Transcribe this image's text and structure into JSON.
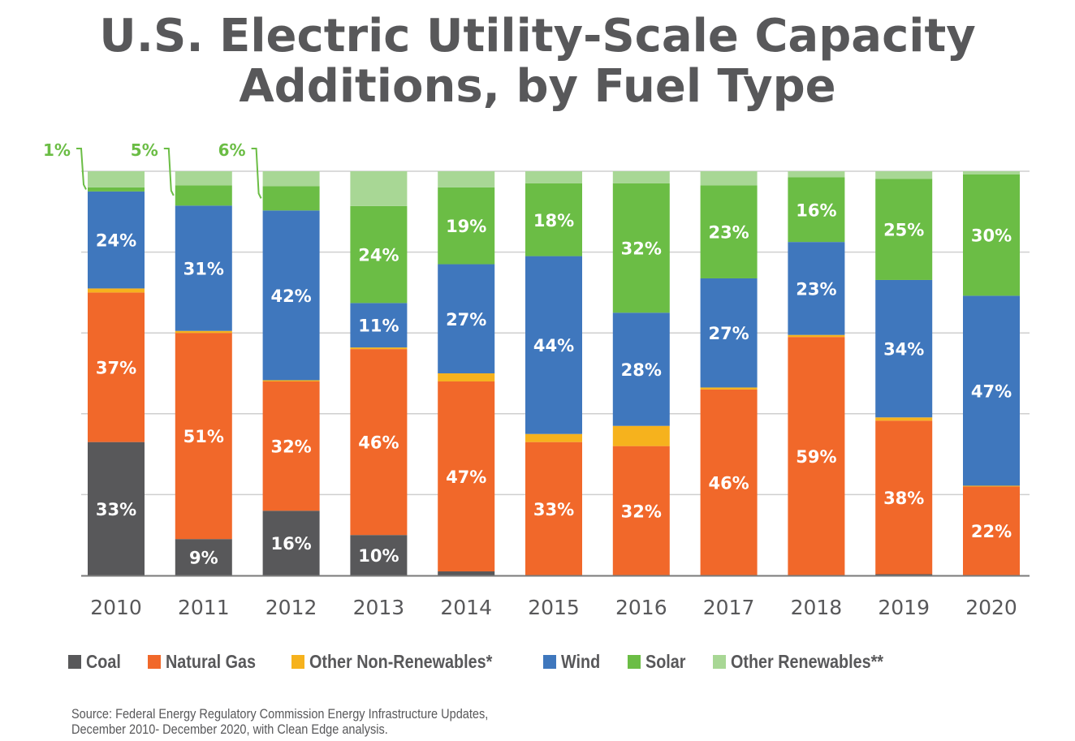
{
  "chart_data": {
    "type": "bar",
    "stacked": true,
    "title": "U.S. Electric Utility-Scale Capacity Additions, by Fuel Type",
    "title_lines": [
      "U.S. Electric Utility-Scale Capacity",
      "Additions, by Fuel Type"
    ],
    "xlabel": "",
    "ylabel": "",
    "ylim": [
      0,
      100
    ],
    "unit": "%",
    "grid": true,
    "legend_position": "bottom",
    "categories": [
      "2010",
      "2011",
      "2012",
      "2013",
      "2014",
      "2015",
      "2016",
      "2017",
      "2018",
      "2019",
      "2020"
    ],
    "series": [
      {
        "name": "Coal",
        "color": "#58585a",
        "values": [
          33,
          9,
          16,
          10,
          1,
          0,
          0,
          0,
          0,
          0.3,
          0
        ],
        "labels": [
          "33%",
          "9%",
          "16%",
          "10%",
          "",
          "",
          "",
          "",
          "",
          "",
          ""
        ]
      },
      {
        "name": "Natural Gas",
        "color": "#f1682a",
        "values": [
          37,
          51,
          32,
          46,
          47,
          33,
          32,
          46,
          59,
          38,
          22
        ],
        "labels": [
          "37%",
          "51%",
          "32%",
          "46%",
          "47%",
          "33%",
          "32%",
          "46%",
          "59%",
          "38%",
          "22%"
        ]
      },
      {
        "name": "Other Non-Renewables*",
        "color": "#f6b21d",
        "values": [
          1,
          0.5,
          0.3,
          0.4,
          2,
          2,
          5,
          0.5,
          0.5,
          0.8,
          0.2
        ],
        "labels": [
          "",
          "",
          "",
          "",
          "",
          "",
          "",
          "",
          "",
          "",
          ""
        ]
      },
      {
        "name": "Wind",
        "color": "#3f77bd",
        "values": [
          24,
          31,
          42,
          11,
          27,
          44,
          28,
          27,
          23,
          34,
          47
        ],
        "labels": [
          "24%",
          "31%",
          "42%",
          "11%",
          "27%",
          "44%",
          "28%",
          "27%",
          "23%",
          "34%",
          "47%"
        ]
      },
      {
        "name": "Solar",
        "color": "#6bbd45",
        "values": [
          1,
          5,
          6,
          24,
          19,
          18,
          32,
          23,
          16,
          25,
          30
        ],
        "labels": [
          "",
          "",
          "",
          "24%",
          "19%",
          "18%",
          "32%",
          "23%",
          "16%",
          "25%",
          "30%"
        ]
      },
      {
        "name": "Other Renewables**",
        "color": "#a8d795",
        "values": [
          4,
          3.5,
          3.7,
          8.6,
          4,
          3,
          3,
          3.5,
          1.5,
          1.9,
          0.8
        ],
        "labels": [
          "",
          "",
          "",
          "",
          "",
          "",
          "",
          "",
          "",
          "",
          ""
        ]
      }
    ],
    "annotations": [
      {
        "text": "1%",
        "category": "2010",
        "series": "Solar"
      },
      {
        "text": "5%",
        "category": "2011",
        "series": "Solar"
      },
      {
        "text": "6%",
        "category": "2012",
        "series": "Solar"
      }
    ],
    "source": "Source: Federal Energy Regulatory Commission Energy Infrastructure Updates, December 2010- December 2020, with Clean Edge analysis.",
    "source_lines": [
      "Source: Federal Energy Regulatory Commission Energy Infrastructure Updates,",
      "December 2010- December 2020, with Clean Edge analysis."
    ]
  },
  "colors": {
    "title": "#58585a",
    "gridline": "#cfcfcf",
    "axis": "#7a7a7a",
    "callout": "#6bbd45"
  }
}
